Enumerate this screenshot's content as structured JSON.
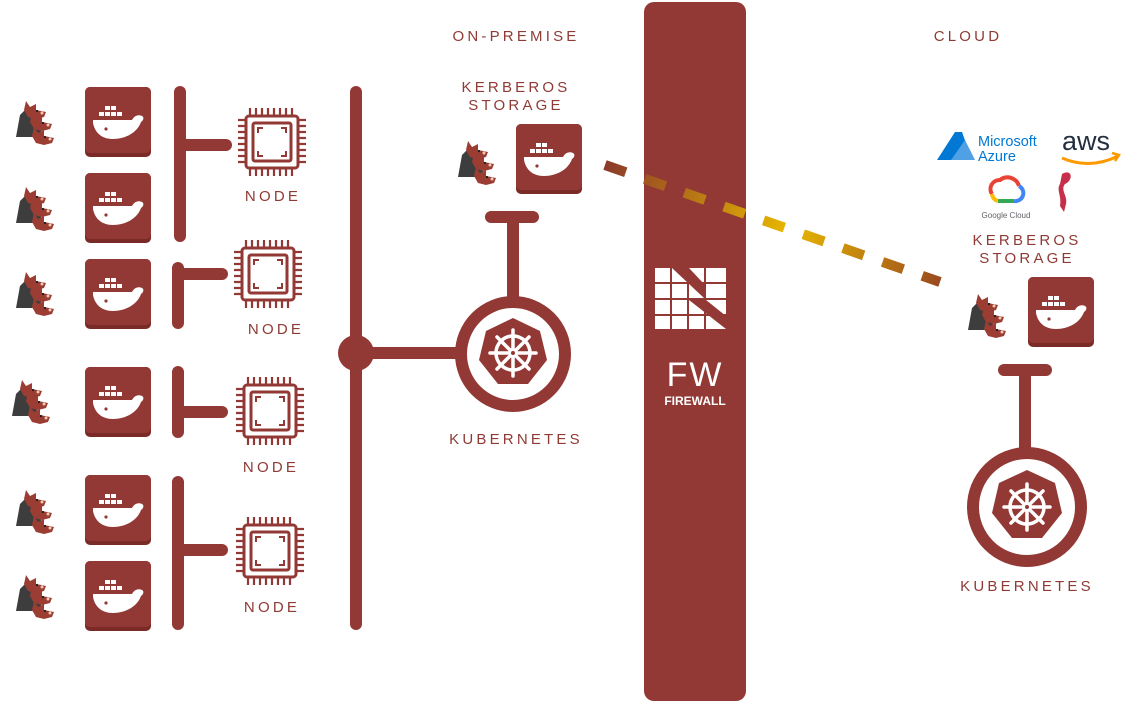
{
  "labels": {
    "on_premise": "ON-PREMISE",
    "cloud": "CLOUD",
    "kerberos_storage_line1": "KERBEROS",
    "kerberos_storage_line2": "STORAGE",
    "kubernetes": "KUBERNETES",
    "node": "NODE",
    "fw_short": "FW",
    "fw_long": "FIREWALL"
  },
  "cloud_providers": {
    "azure_line1": "Microsoft",
    "azure_line2": "Azure",
    "aws": "aws",
    "google": "Google Cloud"
  },
  "icons": [
    "kerberos-agent-icon",
    "docker-icon",
    "cpu-chip-icon",
    "kubernetes-icon",
    "firewall-logo-icon",
    "azure-logo-icon",
    "aws-logo-icon",
    "google-cloud-logo-icon",
    "minio-logo-icon"
  ],
  "colors": {
    "primary": "#933935",
    "dark": "#7a2a27",
    "link_dash_start": "#8b3a2a",
    "link_dash_end": "#e8b800",
    "azure": "#0078d4",
    "aws_text": "#232f3e",
    "aws_smile": "#ff9900"
  }
}
